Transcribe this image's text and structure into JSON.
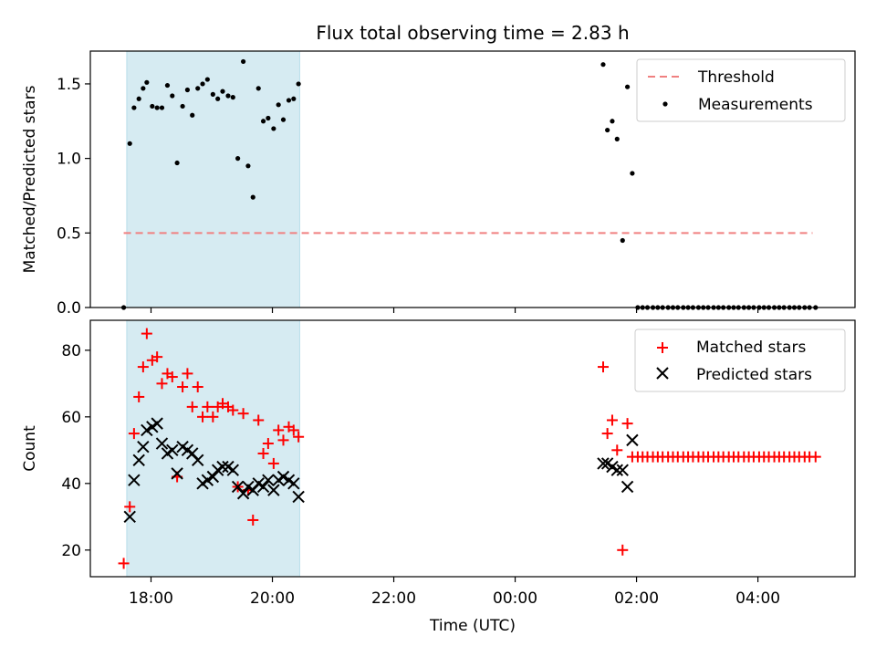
{
  "chart_data": [
    {
      "type": "scatter",
      "title": "Flux total observing time = 2.83 h",
      "xlabel": "",
      "ylabel": "Matched/Predicted stars",
      "xlim": [
        17.0,
        29.6
      ],
      "ylim": [
        0.0,
        1.72
      ],
      "yticks": [
        0.0,
        0.5,
        1.0,
        1.5
      ],
      "ytick_labels": [
        "0.0",
        "0.5",
        "1.0",
        "1.5"
      ],
      "shaded_interval": [
        17.6,
        20.45
      ],
      "legend": {
        "position": "top-right",
        "entries": [
          "Threshold",
          "Measurements"
        ]
      },
      "threshold": {
        "name": "Threshold",
        "x": [
          17.55,
          28.9
        ],
        "y": 0.5,
        "color": "#f08080"
      },
      "series": [
        {
          "name": "Measurements",
          "color": "#000000",
          "x": [
            17.55,
            17.65,
            17.72,
            17.8,
            17.87,
            17.93,
            18.02,
            18.1,
            18.18,
            18.27,
            18.35,
            18.43,
            18.52,
            18.6,
            18.68,
            18.77,
            18.85,
            18.93,
            19.02,
            19.1,
            19.18,
            19.27,
            19.35,
            19.43,
            19.52,
            19.6,
            19.68,
            19.77,
            19.85,
            19.93,
            20.02,
            20.1,
            20.18,
            20.27,
            20.35,
            20.43,
            25.45,
            25.52,
            25.6,
            25.68,
            25.77,
            25.85,
            25.93,
            26.02,
            26.1,
            26.18,
            26.27,
            26.35,
            26.43,
            26.52,
            26.6,
            26.68,
            26.77,
            26.85,
            26.93,
            27.02,
            27.1,
            27.18,
            27.27,
            27.35,
            27.43,
            27.52,
            27.6,
            27.68,
            27.77,
            27.85,
            27.93,
            28.02,
            28.1,
            28.18,
            28.27,
            28.35,
            28.43,
            28.52,
            28.6,
            28.68,
            28.77,
            28.85,
            28.95
          ],
          "y": [
            0.0,
            1.1,
            1.34,
            1.4,
            1.47,
            1.51,
            1.35,
            1.34,
            1.34,
            1.49,
            1.42,
            0.97,
            1.35,
            1.46,
            1.29,
            1.47,
            1.5,
            1.53,
            1.43,
            1.4,
            1.45,
            1.42,
            1.41,
            1.0,
            1.65,
            0.95,
            0.74,
            1.47,
            1.25,
            1.27,
            1.2,
            1.36,
            1.26,
            1.39,
            1.4,
            1.5,
            1.63,
            1.19,
            1.25,
            1.13,
            0.45,
            1.48,
            0.9,
            0.0,
            0.0,
            0.0,
            0.0,
            0.0,
            0.0,
            0.0,
            0.0,
            0.0,
            0.0,
            0.0,
            0.0,
            0.0,
            0.0,
            0.0,
            0.0,
            0.0,
            0.0,
            0.0,
            0.0,
            0.0,
            0.0,
            0.0,
            0.0,
            0.0,
            0.0,
            0.0,
            0.0,
            0.0,
            0.0,
            0.0,
            0.0,
            0.0,
            0.0,
            0.0,
            0.0
          ]
        }
      ]
    },
    {
      "type": "scatter",
      "title": "",
      "xlabel": "Time (UTC)",
      "ylabel": "Count",
      "xlim": [
        17.0,
        29.6
      ],
      "ylim": [
        12.0,
        89.0
      ],
      "yticks": [
        20,
        40,
        60,
        80
      ],
      "ytick_labels": [
        "20",
        "40",
        "60",
        "80"
      ],
      "xticks": [
        18,
        20,
        22,
        24,
        26,
        28
      ],
      "xtick_labels": [
        "18:00",
        "20:00",
        "22:00",
        "00:00",
        "02:00",
        "04:00"
      ],
      "shaded_interval": [
        17.6,
        20.45
      ],
      "legend": {
        "position": "top-right",
        "entries": [
          "Matched stars",
          "Predicted stars"
        ]
      },
      "series": [
        {
          "name": "Matched stars",
          "marker": "+",
          "color": "#ff0000",
          "x": [
            17.55,
            17.65,
            17.72,
            17.8,
            17.87,
            17.93,
            18.02,
            18.1,
            18.18,
            18.27,
            18.35,
            18.43,
            18.52,
            18.6,
            18.68,
            18.77,
            18.85,
            18.93,
            19.02,
            19.1,
            19.18,
            19.27,
            19.35,
            19.43,
            19.52,
            19.6,
            19.68,
            19.77,
            19.85,
            19.93,
            20.02,
            20.1,
            20.18,
            20.27,
            20.35,
            20.43,
            25.45,
            25.52,
            25.6,
            25.68,
            25.77,
            25.85,
            25.93,
            26.02,
            26.1,
            26.18,
            26.27,
            26.35,
            26.43,
            26.52,
            26.6,
            26.68,
            26.77,
            26.85,
            26.93,
            27.02,
            27.1,
            27.18,
            27.27,
            27.35,
            27.43,
            27.52,
            27.6,
            27.68,
            27.77,
            27.85,
            27.93,
            28.02,
            28.1,
            28.18,
            28.27,
            28.35,
            28.43,
            28.52,
            28.6,
            28.68,
            28.77,
            28.85,
            28.95
          ],
          "y": [
            16,
            33,
            55,
            66,
            75,
            85,
            77,
            78,
            70,
            73,
            72,
            42,
            69,
            73,
            63,
            69,
            60,
            63,
            60,
            63,
            64,
            63,
            62,
            39,
            61,
            38,
            29,
            59,
            49,
            52,
            46,
            56,
            53,
            57,
            56,
            54,
            75,
            55,
            59,
            50,
            20,
            58,
            48,
            48,
            48,
            48,
            48,
            48,
            48,
            48,
            48,
            48,
            48,
            48,
            48,
            48,
            48,
            48,
            48,
            48,
            48,
            48,
            48,
            48,
            48,
            48,
            48,
            48,
            48,
            48,
            48,
            48,
            48,
            48,
            48,
            48,
            48,
            48,
            48
          ]
        },
        {
          "name": "Predicted stars",
          "marker": "x",
          "color": "#000000",
          "x": [
            17.65,
            17.72,
            17.8,
            17.87,
            17.93,
            18.02,
            18.1,
            18.18,
            18.27,
            18.35,
            18.43,
            18.52,
            18.6,
            18.68,
            18.77,
            18.85,
            18.93,
            19.02,
            19.1,
            19.18,
            19.27,
            19.35,
            19.43,
            19.52,
            19.6,
            19.68,
            19.77,
            19.85,
            19.93,
            20.02,
            20.1,
            20.18,
            20.27,
            20.35,
            20.43,
            25.45,
            25.52,
            25.6,
            25.68,
            25.77,
            25.85,
            25.93
          ],
          "y": [
            30,
            41,
            47,
            51,
            56,
            57,
            58,
            52,
            49,
            50,
            43,
            51,
            50,
            49,
            47,
            40,
            41,
            42,
            44,
            45,
            45,
            44,
            39,
            37,
            39,
            38,
            40,
            39,
            41,
            38,
            41,
            42,
            41,
            40,
            36,
            46,
            46,
            45,
            44,
            44,
            39,
            53
          ]
        }
      ]
    }
  ]
}
